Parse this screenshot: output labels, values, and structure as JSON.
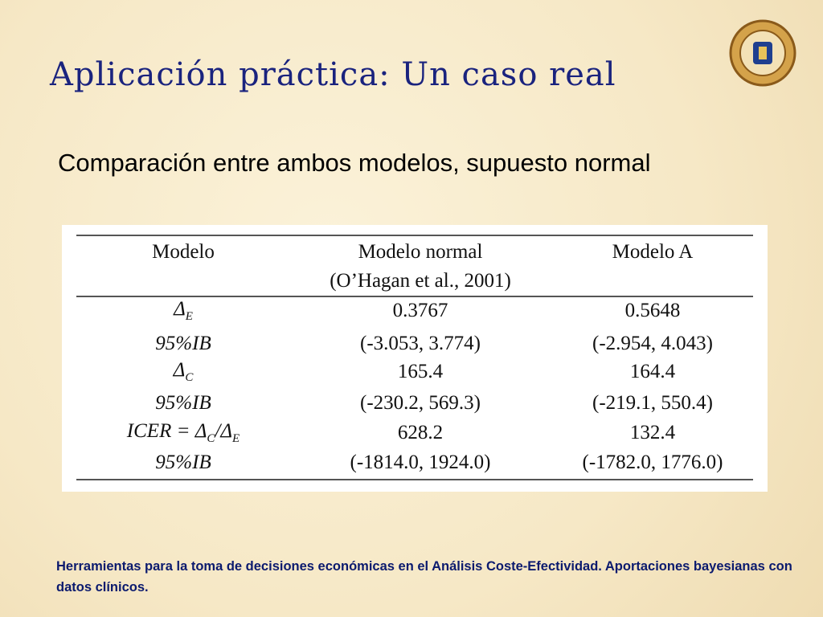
{
  "header": {
    "title": "Aplicación práctica: Un caso real",
    "subtitle": "Comparación entre ambos modelos, supuesto normal"
  },
  "table": {
    "columns": [
      [
        "Modelo"
      ],
      [
        "Modelo normal",
        "(O’Hagan et al., 2001)"
      ],
      [
        "Modelo A"
      ]
    ],
    "rows": [
      {
        "label": [
          "Δ",
          "E"
        ],
        "cells": [
          "0.3767",
          "0.5648"
        ]
      },
      {
        "label": [
          "95%IB"
        ],
        "cells": [
          "(-3.053, 3.774)",
          "(-2.954, 4.043)"
        ]
      },
      {
        "label": [
          "Δ",
          "C"
        ],
        "cells": [
          "165.4",
          "164.4"
        ]
      },
      {
        "label": [
          "95%IB"
        ],
        "cells": [
          "(-230.2, 569.3)",
          "(-219.1, 550.4)"
        ]
      },
      {
        "label": [
          "ICER = Δ",
          "C",
          "/Δ",
          "E"
        ],
        "cells": [
          "628.2",
          "132.4"
        ]
      },
      {
        "label": [
          "95%IB"
        ],
        "cells": [
          "(-1814.0, 1924.0)",
          "(-1782.0, 1776.0)"
        ]
      }
    ]
  },
  "footer": "Herramientas para la toma de decisiones económicas en el Análisis Coste-Efectividad. Aportaciones bayesianas con datos clínicos."
}
